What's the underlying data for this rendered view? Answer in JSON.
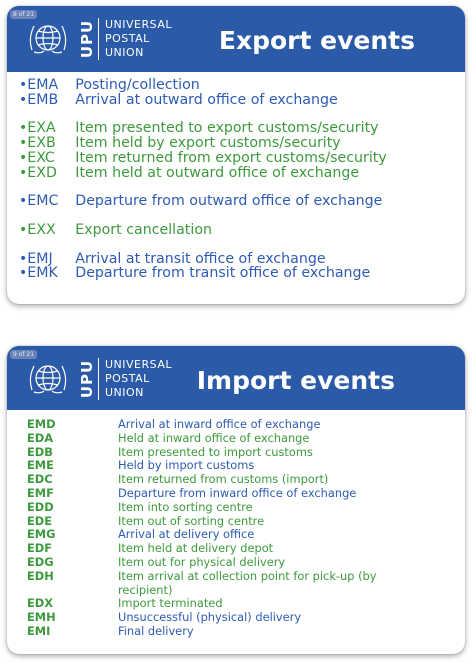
{
  "slide1": {
    "page": "8 of 21",
    "org": [
      "UNIVERSAL",
      "POSTAL",
      "UNION"
    ],
    "upu": "UPU",
    "title": "Export events",
    "groups": [
      [
        {
          "code": "EMA",
          "desc": "Posting/collection",
          "color": "blue"
        },
        {
          "code": "EMB",
          "desc": "Arrival at outward office of exchange",
          "color": "blue"
        }
      ],
      [
        {
          "code": "EXA",
          "desc": "Item presented to export customs/security",
          "color": "green"
        },
        {
          "code": "EXB",
          "desc": "Item held by export customs/security",
          "color": "green"
        },
        {
          "code": "EXC",
          "desc": "Item returned from export customs/security",
          "color": "green"
        },
        {
          "code": "EXD",
          "desc": "Item held at outward office of exchange",
          "color": "green"
        }
      ],
      [
        {
          "code": "EMC",
          "desc": "Departure from outward office of exchange",
          "color": "blue"
        }
      ],
      [
        {
          "code": "EXX",
          "desc": "Export cancellation",
          "color": "green"
        }
      ],
      [
        {
          "code": "EMJ",
          "desc": "Arrival at transit office of exchange",
          "color": "blue"
        },
        {
          "code": "EMK",
          "desc": "Departure from transit office of exchange",
          "color": "blue"
        }
      ]
    ]
  },
  "slide2": {
    "page": "9 of 21",
    "org": [
      "UNIVERSAL",
      "POSTAL",
      "UNION"
    ],
    "upu": "UPU",
    "title": "Import events",
    "rows": [
      {
        "code": "EMD",
        "desc": "Arrival at inward office of exchange",
        "color": "blue"
      },
      {
        "code": "EDA",
        "desc": "Held at inward office of exchange",
        "color": "green"
      },
      {
        "code": "EDB",
        "desc": "Item presented to import customs",
        "color": "green"
      },
      {
        "code": "EME",
        "desc": "Held by import customs",
        "color": "blue"
      },
      {
        "code": "EDC",
        "desc": "Item returned from customs (import)",
        "color": "green"
      },
      {
        "code": "EMF",
        "desc": "Departure from inward office of exchange",
        "color": "blue"
      },
      {
        "code": "EDD",
        "desc": "Item into sorting centre",
        "color": "green"
      },
      {
        "code": "EDE",
        "desc": "Item out of sorting centre",
        "color": "green"
      },
      {
        "code": "EMG",
        "desc": "Arrival at delivery office",
        "color": "blue"
      },
      {
        "code": "EDF",
        "desc": "Item held at delivery depot",
        "color": "green"
      },
      {
        "code": "EDG",
        "desc": "Item out for physical delivery",
        "color": "green"
      },
      {
        "code": "EDH",
        "desc": "Item arrival at collection point for pick-up (by recipient)",
        "color": "green"
      },
      {
        "code": "EDX",
        "desc": "Import terminated",
        "color": "green"
      },
      {
        "code": "EMH",
        "desc": "Unsuccessful (physical) delivery",
        "color": "blue"
      },
      {
        "code": "EMI",
        "desc": "Final delivery",
        "color": "blue"
      }
    ]
  },
  "colors": {
    "banner": "#2a5aa8",
    "blue": "#2e5bb4",
    "green": "#3c9a3c",
    "purple": "#7b2a98"
  }
}
